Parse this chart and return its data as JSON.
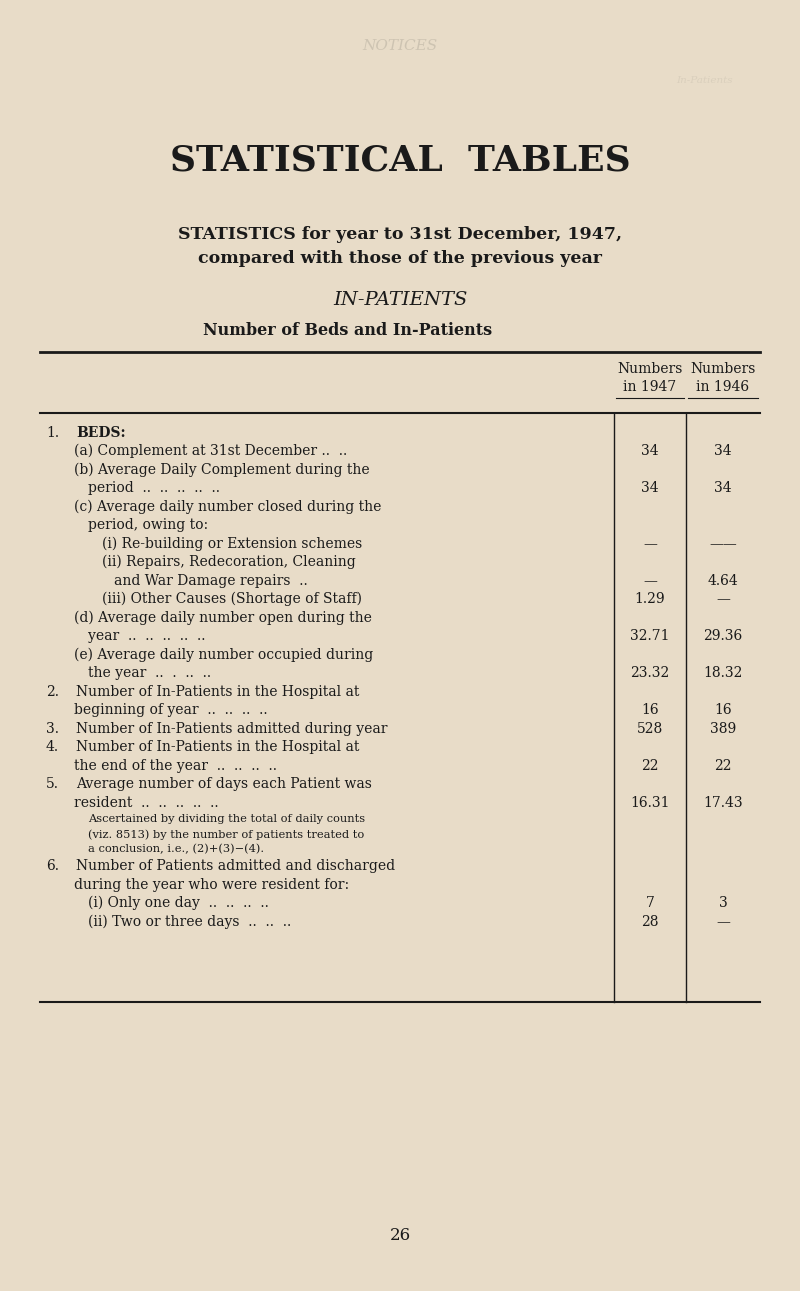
{
  "bg_color": "#e8dcc8",
  "text_color": "#1a1a1a",
  "title1": "STATISTICAL  TABLES",
  "title2": "STATISTICS for year to 31st December, 1947,",
  "title3": "compared with those of the previous year",
  "title4": "IN-PATIENTS",
  "table_title": "Number of Beds and In-Patients",
  "col1_header1": "Numbers",
  "col1_header2": "in 1947",
  "col2_header1": "Numbers",
  "col2_header2": "in 1946",
  "rows": [
    {
      "num": "1.",
      "indent": 0,
      "text": "BEDS:",
      "val1": "",
      "val2": "",
      "bold": true,
      "small": false
    },
    {
      "num": "",
      "indent": 1,
      "text": "(a) Complement at 31st December ..  ..",
      "val1": "34",
      "val2": "34",
      "bold": false,
      "small": false
    },
    {
      "num": "",
      "indent": 1,
      "text": "(b) Average Daily Complement during the",
      "val1": "",
      "val2": "",
      "bold": false,
      "small": false
    },
    {
      "num": "",
      "indent": 2,
      "text": "period  ..  ..  ..  ..  ..",
      "val1": "34",
      "val2": "34",
      "bold": false,
      "small": false
    },
    {
      "num": "",
      "indent": 1,
      "text": "(c) Average daily number closed during the",
      "val1": "",
      "val2": "",
      "bold": false,
      "small": false
    },
    {
      "num": "",
      "indent": 2,
      "text": "period, owing to:",
      "val1": "",
      "val2": "",
      "bold": false,
      "small": false
    },
    {
      "num": "",
      "indent": 3,
      "text": "(i) Re-building or Extension schemes",
      "val1": "—",
      "val2": "——",
      "bold": false,
      "small": false
    },
    {
      "num": "",
      "indent": 3,
      "text": "(ii) Repairs, Redecoration, Cleaning",
      "val1": "",
      "val2": "",
      "bold": false,
      "small": false
    },
    {
      "num": "",
      "indent": 4,
      "text": "and War Damage repairs  ..",
      "val1": "—",
      "val2": "4.64",
      "bold": false,
      "small": false
    },
    {
      "num": "",
      "indent": 3,
      "text": "(iii) Other Causes (Shortage of Staff)",
      "val1": "1.29",
      "val2": "—",
      "bold": false,
      "small": false
    },
    {
      "num": "",
      "indent": 1,
      "text": "(d) Average daily number open during the",
      "val1": "",
      "val2": "",
      "bold": false,
      "small": false
    },
    {
      "num": "",
      "indent": 2,
      "text": "year  ..  ..  ..  ..  ..",
      "val1": "32.71",
      "val2": "29.36",
      "bold": false,
      "small": false
    },
    {
      "num": "",
      "indent": 1,
      "text": "(e) Average daily number occupied during",
      "val1": "",
      "val2": "",
      "bold": false,
      "small": false
    },
    {
      "num": "",
      "indent": 2,
      "text": "the year  ..  .  ..  ..",
      "val1": "23.32",
      "val2": "18.32",
      "bold": false,
      "small": false
    },
    {
      "num": "2.",
      "indent": 0,
      "text": "Number of In-Patients in the Hospital at",
      "val1": "",
      "val2": "",
      "bold": false,
      "small": false
    },
    {
      "num": "",
      "indent": 1,
      "text": "beginning of year  ..  ..  ..  ..",
      "val1": "16",
      "val2": "16",
      "bold": false,
      "small": false
    },
    {
      "num": "3.",
      "indent": 0,
      "text": "Number of In-Patients admitted during year",
      "val1": "528",
      "val2": "389",
      "bold": false,
      "small": false
    },
    {
      "num": "4.",
      "indent": 0,
      "text": "Number of In-Patients in the Hospital at",
      "val1": "",
      "val2": "",
      "bold": false,
      "small": false
    },
    {
      "num": "",
      "indent": 1,
      "text": "the end of the year  ..  ..  ..  ..",
      "val1": "22",
      "val2": "22",
      "bold": false,
      "small": false
    },
    {
      "num": "5.",
      "indent": 0,
      "text": "Average number of days each Patient was",
      "val1": "",
      "val2": "",
      "bold": false,
      "small": false
    },
    {
      "num": "",
      "indent": 1,
      "text": "resident  ..  ..  ..  ..  ..",
      "val1": "16.31",
      "val2": "17.43",
      "bold": false,
      "small": false
    },
    {
      "num": "",
      "indent": 2,
      "text": "Ascertained by dividing the total of daily counts",
      "val1": "",
      "val2": "",
      "bold": false,
      "small": true
    },
    {
      "num": "",
      "indent": 2,
      "text": "(viz. 8513) by the number of patients treated to",
      "val1": "",
      "val2": "",
      "bold": false,
      "small": true
    },
    {
      "num": "",
      "indent": 2,
      "text": "a conclusion, i.e., (2)+(3)−(4).",
      "val1": "",
      "val2": "",
      "bold": false,
      "small": true
    },
    {
      "num": "6.",
      "indent": 0,
      "text": "Number of Patients admitted and discharged",
      "val1": "",
      "val2": "",
      "bold": false,
      "small": false
    },
    {
      "num": "",
      "indent": 1,
      "text": "during the year who were resident for:",
      "val1": "",
      "val2": "",
      "bold": false,
      "small": false
    },
    {
      "num": "",
      "indent": 2,
      "text": "(i) Only one day  ..  ..  ..  ..",
      "val1": "7",
      "val2": "3",
      "bold": false,
      "small": false
    },
    {
      "num": "",
      "indent": 2,
      "text": "(ii) Two or three days  ..  ..  ..",
      "val1": "28",
      "val2": "—",
      "bold": false,
      "small": false
    }
  ],
  "page_number": "26",
  "watermark_text": "NOTICES",
  "fig_width": 8.0,
  "fig_height": 12.91,
  "dpi": 100
}
